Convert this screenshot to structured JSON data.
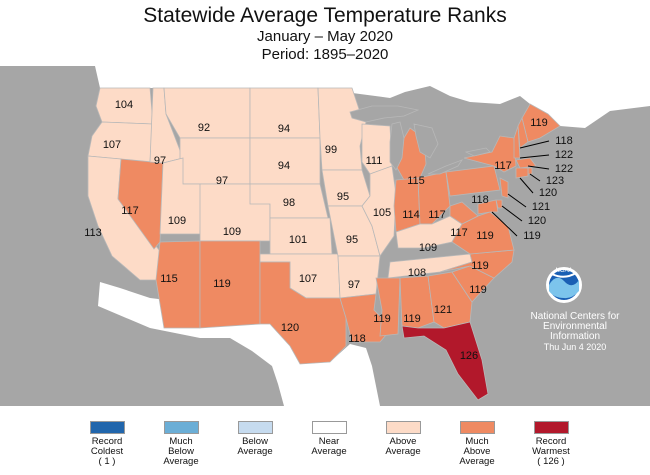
{
  "title": "Statewide Average Temperature Ranks",
  "subtitle": "January – May 2020",
  "period": "Period: 1895–2020",
  "credit": {
    "logo_text": "NOAA",
    "line1": "National Centers for",
    "line2": "Environmental",
    "line3": "Information",
    "date": "Thu Jun  4 2020"
  },
  "legend": [
    {
      "label": "Record\nColdest\n( 1 )",
      "color": "#2166ac"
    },
    {
      "label": "Much\nBelow\nAverage",
      "color": "#6baed6"
    },
    {
      "label": "Below\nAverage",
      "color": "#c6dbef"
    },
    {
      "label": "Near\nAverage",
      "color": "#ffffff"
    },
    {
      "label": "Above\nAverage",
      "color": "#fddbc7"
    },
    {
      "label": "Much\nAbove\nAverage",
      "color": "#ef8a62"
    },
    {
      "label": "Record\nWarmest\n( 126 )",
      "color": "#b2182b"
    }
  ],
  "colors": {
    "background": "#a6a6a6",
    "land": "#ffffff",
    "lakes": "#a6a6a6",
    "state_border": "#b8b8b8",
    "above_average": "#fddbc7",
    "much_above_average": "#ef8a62",
    "record_warmest": "#b2182b"
  },
  "states": [
    {
      "name": "WA",
      "rank": 104,
      "category": "above_average"
    },
    {
      "name": "OR",
      "rank": 107,
      "category": "above_average"
    },
    {
      "name": "CA",
      "rank": 113,
      "category": "above_average"
    },
    {
      "name": "NV",
      "rank": 117,
      "category": "much_above_average"
    },
    {
      "name": "ID",
      "rank": 97,
      "category": "above_average"
    },
    {
      "name": "MT",
      "rank": 92,
      "category": "above_average"
    },
    {
      "name": "WY",
      "rank": 97,
      "category": "above_average"
    },
    {
      "name": "UT",
      "rank": 109,
      "category": "above_average"
    },
    {
      "name": "CO",
      "rank": 109,
      "category": "above_average"
    },
    {
      "name": "AZ",
      "rank": 115,
      "category": "much_above_average"
    },
    {
      "name": "NM",
      "rank": 119,
      "category": "much_above_average"
    },
    {
      "name": "ND",
      "rank": 94,
      "category": "above_average"
    },
    {
      "name": "SD",
      "rank": 94,
      "category": "above_average"
    },
    {
      "name": "NE",
      "rank": 98,
      "category": "above_average"
    },
    {
      "name": "KS",
      "rank": 101,
      "category": "above_average"
    },
    {
      "name": "OK",
      "rank": 107,
      "category": "above_average"
    },
    {
      "name": "TX",
      "rank": 120,
      "category": "much_above_average"
    },
    {
      "name": "MN",
      "rank": 99,
      "category": "above_average"
    },
    {
      "name": "IA",
      "rank": 95,
      "category": "above_average"
    },
    {
      "name": "MO",
      "rank": 95,
      "category": "above_average"
    },
    {
      "name": "AR",
      "rank": 97,
      "category": "above_average"
    },
    {
      "name": "LA",
      "rank": 118,
      "category": "much_above_average"
    },
    {
      "name": "WI",
      "rank": 111,
      "category": "above_average"
    },
    {
      "name": "IL",
      "rank": 105,
      "category": "above_average"
    },
    {
      "name": "MI",
      "rank": 115,
      "category": "much_above_average"
    },
    {
      "name": "IN",
      "rank": 114,
      "category": "much_above_average"
    },
    {
      "name": "OH",
      "rank": 117,
      "category": "much_above_average"
    },
    {
      "name": "KY",
      "rank": 109,
      "category": "above_average"
    },
    {
      "name": "TN",
      "rank": 108,
      "category": "above_average"
    },
    {
      "name": "MS",
      "rank": 119,
      "category": "much_above_average"
    },
    {
      "name": "AL",
      "rank": 119,
      "category": "much_above_average"
    },
    {
      "name": "GA",
      "rank": 121,
      "category": "much_above_average"
    },
    {
      "name": "FL",
      "rank": 126,
      "category": "record_warmest"
    },
    {
      "name": "SC",
      "rank": 119,
      "category": "much_above_average"
    },
    {
      "name": "NC",
      "rank": 119,
      "category": "much_above_average"
    },
    {
      "name": "VA",
      "rank": 119,
      "category": "much_above_average"
    },
    {
      "name": "WV",
      "rank": 117,
      "category": "much_above_average"
    },
    {
      "name": "PA",
      "rank": 118,
      "category": "much_above_average"
    },
    {
      "name": "NY",
      "rank": 117,
      "category": "much_above_average"
    },
    {
      "name": "ME",
      "rank": 119,
      "category": "much_above_average"
    },
    {
      "name": "NH",
      "rank": 118,
      "category": "much_above_average"
    },
    {
      "name": "VT",
      "rank": 122,
      "category": "much_above_average"
    },
    {
      "name": "MA",
      "rank": 122,
      "category": "much_above_average"
    },
    {
      "name": "RI",
      "rank": 123,
      "category": "much_above_average"
    },
    {
      "name": "CT",
      "rank": 120,
      "category": "much_above_average"
    },
    {
      "name": "NJ",
      "rank": 121,
      "category": "much_above_average"
    },
    {
      "name": "DE",
      "rank": 120,
      "category": "much_above_average"
    },
    {
      "name": "MD",
      "rank": 119,
      "category": "much_above_average"
    }
  ]
}
